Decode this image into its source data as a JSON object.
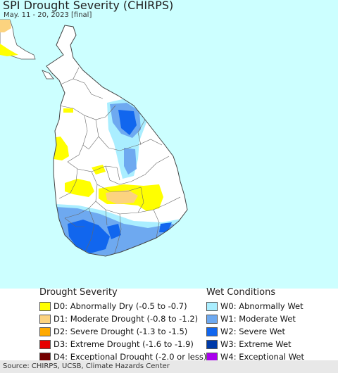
{
  "title": "SPI Drought Severity (CHIRPS)",
  "subtitle": "May. 11 - 20, 2023 [final]",
  "legend": {
    "drought_heading": "Drought Severity",
    "drought": [
      {
        "code": "D0",
        "label": "D0: Abnormally Dry (-0.5 to -0.7)",
        "color": "#ffff00"
      },
      {
        "code": "D1",
        "label": "D1: Moderate Drought (-0.8 to -1.2)",
        "color": "#fcd37f"
      },
      {
        "code": "D2",
        "label": "D2: Severe Drought (-1.3 to -1.5)",
        "color": "#ffaa00"
      },
      {
        "code": "D3",
        "label": "D3: Extreme Drought (-1.6 to -1.9)",
        "color": "#e60000"
      },
      {
        "code": "D4",
        "label": "D4: Exceptional Drought (-2.0 or less)",
        "color": "#730000"
      }
    ],
    "wet_heading": "Wet Conditions",
    "wet": [
      {
        "code": "W0",
        "label": "W0: Abnormally Wet",
        "color": "#aaeeff"
      },
      {
        "code": "W1",
        "label": "W1: Moderate Wet",
        "color": "#6ea9f0"
      },
      {
        "code": "W2",
        "label": "W2: Severe Wet",
        "color": "#1166ee"
      },
      {
        "code": "W3",
        "label": "W3: Extreme Wet",
        "color": "#003aa8"
      },
      {
        "code": "W4",
        "label": "W4: Exceptional Wet",
        "color": "#aa00ee"
      }
    ]
  },
  "source": "Source: CHIRPS, UCSB, Climate Hazards Center",
  "colors": {
    "ocean": "#ccffff",
    "land": "#ffffff",
    "border": "#555555"
  }
}
